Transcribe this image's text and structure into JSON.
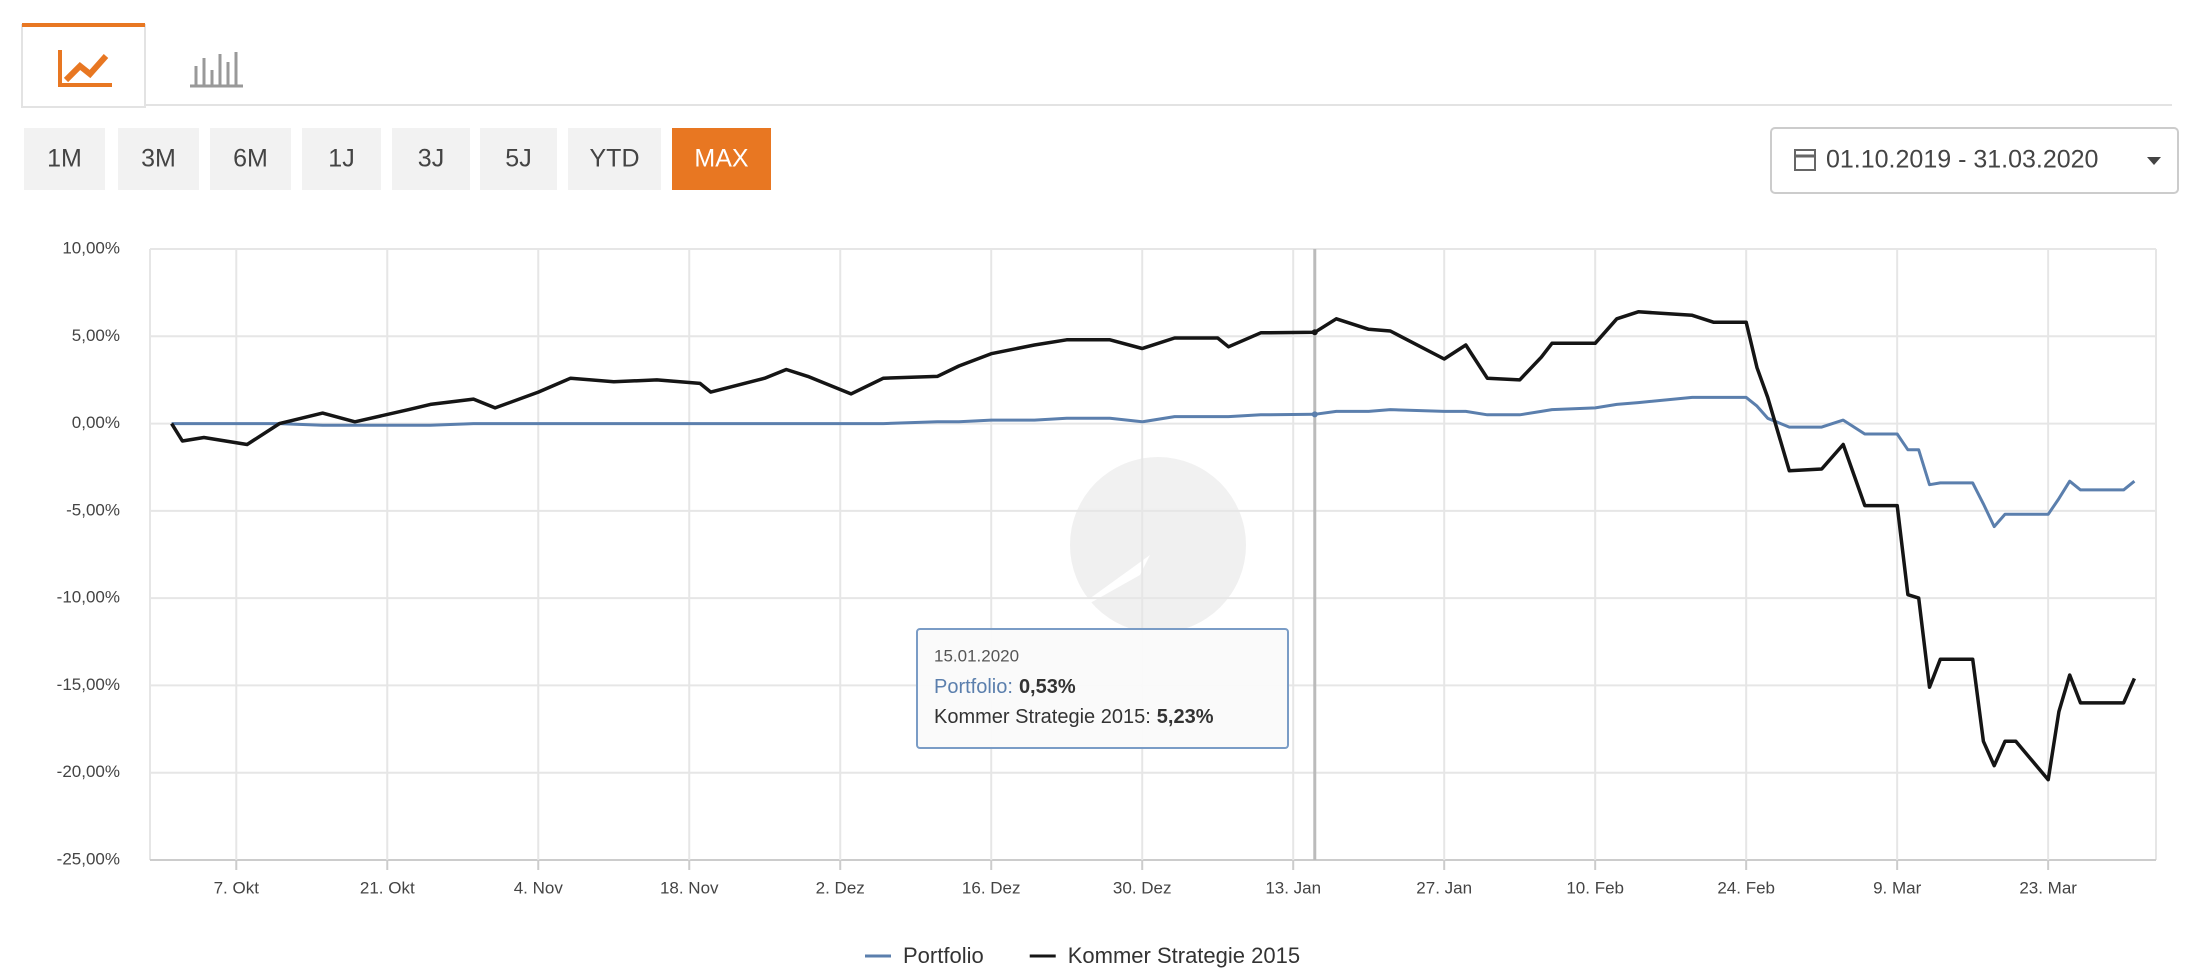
{
  "ui": {
    "periods": [
      "1M",
      "3M",
      "6M",
      "1J",
      "3J",
      "5J",
      "YTD",
      "MAX"
    ],
    "active_period": 7,
    "date_range": "01.10.2019 - 31.03.2020"
  },
  "chart_data": {
    "type": "line",
    "x": [
      "01.10.2019",
      "02.10.2019",
      "04.10.2019",
      "08.10.2019",
      "11.10.2019",
      "15.10.2019",
      "18.10.2019",
      "23.10.2019",
      "25.10.2019",
      "29.10.2019",
      "31.10.2019",
      "04.11.2019",
      "07.11.2019",
      "11.11.2019",
      "15.11.2019",
      "19.11.2019",
      "20.11.2019",
      "25.11.2019",
      "27.11.2019",
      "29.11.2019",
      "03.12.2019",
      "06.12.2019",
      "11.12.2019",
      "13.12.2019",
      "16.12.2019",
      "20.12.2019",
      "23.12.2019",
      "27.12.2019",
      "30.12.2019",
      "02.01.2020",
      "06.01.2020",
      "07.01.2020",
      "10.01.2020",
      "15.01.2020",
      "17.01.2020",
      "20.01.2020",
      "22.01.2020",
      "27.01.2020",
      "29.01.2020",
      "31.01.2020",
      "03.02.2020",
      "05.02.2020",
      "06.02.2020",
      "10.02.2020",
      "12.02.2020",
      "14.02.2020",
      "19.02.2020",
      "21.02.2020",
      "24.02.2020",
      "25.02.2020",
      "26.02.2020",
      "28.02.2020",
      "02.03.2020",
      "04.03.2020",
      "06.03.2020",
      "09.03.2020",
      "10.03.2020",
      "11.03.2020",
      "12.03.2020",
      "13.03.2020",
      "16.03.2020",
      "17.03.2020",
      "18.03.2020",
      "19.03.2020",
      "20.03.2020",
      "23.03.2020",
      "24.03.2020",
      "25.03.2020",
      "26.03.2020",
      "27.03.2020",
      "30.03.2020",
      "31.03.2020"
    ],
    "series": [
      {
        "name": "Portfolio",
        "color": "#5b7fad",
        "values": [
          0,
          0,
          0,
          0,
          0,
          -0.1,
          -0.1,
          -0.1,
          -0.1,
          0,
          0,
          0,
          0,
          0,
          0,
          0,
          0,
          0,
          0,
          0,
          0,
          0,
          0.1,
          0.1,
          0.2,
          0.2,
          0.3,
          0.3,
          0.1,
          0.4,
          0.4,
          0.4,
          0.5,
          0.53,
          0.7,
          0.7,
          0.8,
          0.7,
          0.7,
          0.5,
          0.5,
          0.7,
          0.8,
          0.9,
          1.1,
          1.2,
          1.5,
          1.5,
          1.5,
          1.0,
          0.3,
          -0.2,
          -0.2,
          0.2,
          -0.6,
          -0.6,
          -1.5,
          -1.5,
          -3.5,
          -3.4,
          -3.4,
          -4.6,
          -5.9,
          -5.2,
          -5.2,
          -5.2,
          -4.3,
          -3.3,
          -3.8,
          -3.8,
          -3.8,
          -3.3
        ]
      },
      {
        "name": "Kommer Strategie 2015",
        "color": "#151515",
        "values": [
          0,
          -1.0,
          -0.8,
          -1.2,
          0.0,
          0.6,
          0.1,
          0.8,
          1.1,
          1.4,
          0.9,
          1.8,
          2.6,
          2.4,
          2.5,
          2.3,
          1.8,
          2.6,
          3.1,
          2.7,
          1.7,
          2.6,
          2.7,
          3.3,
          4.0,
          4.5,
          4.8,
          4.8,
          4.3,
          4.9,
          4.9,
          4.4,
          5.2,
          5.23,
          6.0,
          5.4,
          5.3,
          3.7,
          4.5,
          2.6,
          2.5,
          3.8,
          4.6,
          4.6,
          6.0,
          6.4,
          6.2,
          5.8,
          5.8,
          3.2,
          1.5,
          -2.7,
          -2.6,
          -1.2,
          -4.7,
          -4.7,
          -9.8,
          -10.0,
          -15.1,
          -13.5,
          -13.5,
          -18.2,
          -19.6,
          -18.2,
          -18.2,
          -20.4,
          -16.5,
          -14.4,
          -16.0,
          -16.0,
          -16.0,
          -14.6
        ]
      }
    ],
    "xlim": [
      "29.09.2019",
      "02.04.2020"
    ],
    "xticks": [
      {
        "value": "07.10.2019",
        "label": "7. Okt"
      },
      {
        "value": "21.10.2019",
        "label": "21. Okt"
      },
      {
        "value": "04.11.2019",
        "label": "4. Nov"
      },
      {
        "value": "18.11.2019",
        "label": "18. Nov"
      },
      {
        "value": "02.12.2019",
        "label": "2. Dez"
      },
      {
        "value": "16.12.2019",
        "label": "16. Dez"
      },
      {
        "value": "30.12.2019",
        "label": "30. Dez"
      },
      {
        "value": "13.01.2020",
        "label": "13. Jan"
      },
      {
        "value": "27.01.2020",
        "label": "27. Jan"
      },
      {
        "value": "10.02.2020",
        "label": "10. Feb"
      },
      {
        "value": "24.02.2020",
        "label": "24. Feb"
      },
      {
        "value": "09.03.2020",
        "label": "9. Mar"
      },
      {
        "value": "23.03.2020",
        "label": "23. Mar"
      }
    ],
    "ylim": [
      -25,
      10
    ],
    "yticks": [
      {
        "value": 10,
        "label": "10,00%"
      },
      {
        "value": 5,
        "label": "5,00%"
      },
      {
        "value": 0,
        "label": "0,00%"
      },
      {
        "value": -5,
        "label": "-5,00%"
      },
      {
        "value": -10,
        "label": "-10,00%"
      },
      {
        "value": -15,
        "label": "-15,00%"
      },
      {
        "value": -20,
        "label": "-20,00%"
      },
      {
        "value": -25,
        "label": "-25,00%"
      }
    ],
    "grid": true,
    "legend": "bottom",
    "tooltip": {
      "date": "15.01.2020",
      "rows": [
        {
          "name": "Portfolio:",
          "value": 0.53,
          "value_label": "0,53%"
        },
        {
          "name": "Kommer Strategie 2015:",
          "value": 5.23,
          "value_label": "5,23%"
        }
      ]
    }
  }
}
